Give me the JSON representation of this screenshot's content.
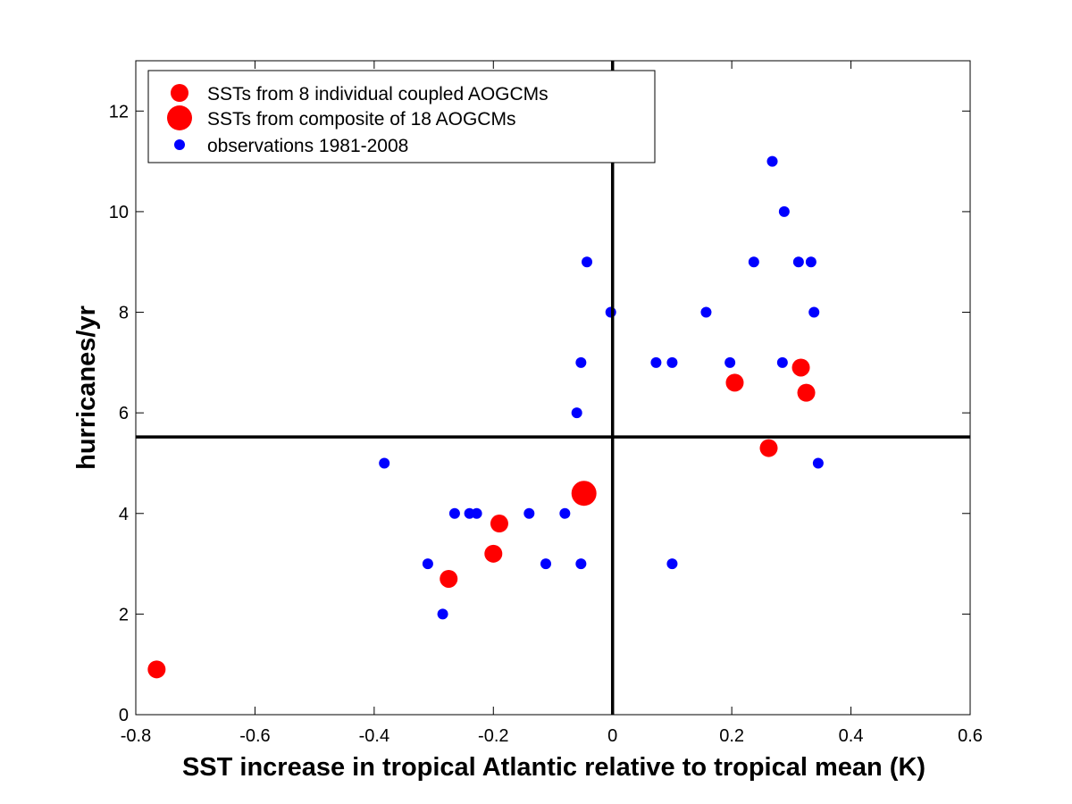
{
  "chart_data": {
    "type": "scatter",
    "xlabel": "SST increase in tropical Atlantic relative to tropical mean (K)",
    "ylabel": "hurricanes/yr",
    "xlim": [
      -0.8,
      0.6
    ],
    "ylim": [
      0,
      13
    ],
    "xticks": [
      -0.8,
      -0.6,
      -0.4,
      -0.2,
      0,
      0.2,
      0.4,
      0.6
    ],
    "xtick_labels": [
      "-0.8",
      "-0.6",
      "-0.4",
      "-0.2",
      "0",
      "0.2",
      "0.4",
      "0.6"
    ],
    "yticks": [
      0,
      2,
      4,
      6,
      8,
      10,
      12
    ],
    "ytick_labels": [
      "0",
      "2",
      "4",
      "6",
      "8",
      "10",
      "12"
    ],
    "grid": false,
    "legend_position": "top-left",
    "reference_lines": {
      "vertical_x": 0,
      "horizontal_y": 5.52
    },
    "series": [
      {
        "name": "SSTs from 8 individual coupled AOGCMs",
        "color": "#ff0000",
        "marker": "large-circle",
        "points": [
          {
            "x": -0.765,
            "y": 0.9
          },
          {
            "x": -0.275,
            "y": 2.7
          },
          {
            "x": -0.2,
            "y": 3.2
          },
          {
            "x": -0.19,
            "y": 3.8
          },
          {
            "x": 0.205,
            "y": 6.6
          },
          {
            "x": 0.262,
            "y": 5.3
          },
          {
            "x": 0.316,
            "y": 6.9
          },
          {
            "x": 0.325,
            "y": 6.4
          }
        ]
      },
      {
        "name": "SSTs from composite of 18 AOGCMs",
        "color": "#ff0000",
        "marker": "extra-large-circle",
        "points": [
          {
            "x": -0.048,
            "y": 4.4
          }
        ]
      },
      {
        "name": "observations 1981-2008",
        "color": "#0000ff",
        "marker": "small-circle",
        "points": [
          {
            "x": -0.383,
            "y": 5
          },
          {
            "x": -0.31,
            "y": 3
          },
          {
            "x": -0.285,
            "y": 2
          },
          {
            "x": -0.265,
            "y": 4
          },
          {
            "x": -0.24,
            "y": 4
          },
          {
            "x": -0.228,
            "y": 4
          },
          {
            "x": -0.14,
            "y": 4
          },
          {
            "x": -0.112,
            "y": 3
          },
          {
            "x": -0.08,
            "y": 4
          },
          {
            "x": -0.06,
            "y": 6
          },
          {
            "x": -0.053,
            "y": 7
          },
          {
            "x": -0.053,
            "y": 3
          },
          {
            "x": -0.043,
            "y": 9
          },
          {
            "x": -0.003,
            "y": 8
          },
          {
            "x": 0.073,
            "y": 7
          },
          {
            "x": 0.1,
            "y": 7
          },
          {
            "x": 0.1,
            "y": 3
          },
          {
            "x": 0.157,
            "y": 8
          },
          {
            "x": 0.197,
            "y": 7
          },
          {
            "x": 0.237,
            "y": 9
          },
          {
            "x": 0.268,
            "y": 11
          },
          {
            "x": 0.285,
            "y": 7
          },
          {
            "x": 0.288,
            "y": 10
          },
          {
            "x": 0.312,
            "y": 9
          },
          {
            "x": 0.333,
            "y": 9
          },
          {
            "x": 0.338,
            "y": 8
          },
          {
            "x": 0.345,
            "y": 5
          }
        ]
      }
    ]
  }
}
